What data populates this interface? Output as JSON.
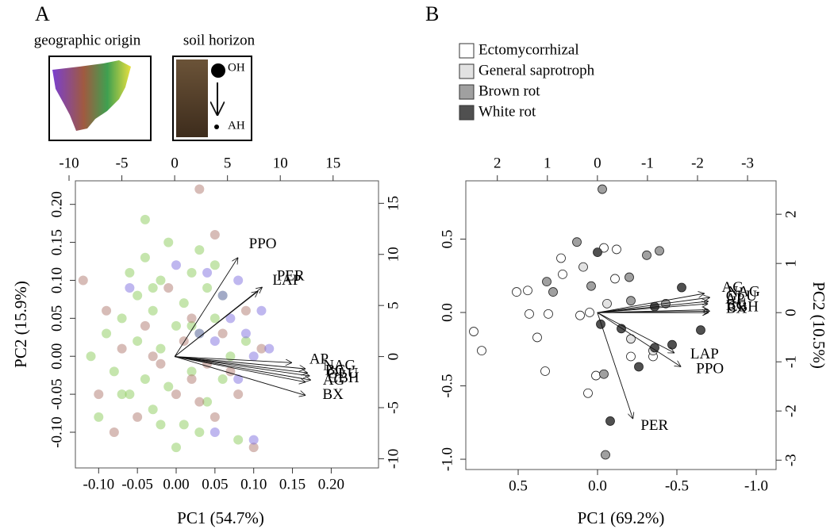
{
  "chart_data": [
    {
      "type": "biplot",
      "title": "A",
      "annotations": {
        "inset_left": "geographic origin",
        "inset_right": "soil horizon",
        "top_label": "OH",
        "bottom_label": "AH"
      },
      "xlabel": "PC1 (54.7%)",
      "ylabel": "PC2 (15.9%)",
      "xlim": [
        -0.13,
        0.261
      ],
      "ylim": [
        -0.147,
        0.231
      ],
      "xticks": [
        {
          "value": -0.1,
          "label": "-0.10"
        },
        -0.05,
        {
          "value": 0,
          "label": "0.00"
        },
        0.05,
        {
          "value": 0.1,
          "label": "0.10"
        },
        0.15,
        {
          "value": 0.2,
          "label": "0.20"
        }
      ],
      "yticks": [
        {
          "value": -0.1,
          "label": "-0.10"
        },
        -0.05,
        {
          "value": 0,
          "label": "0.00"
        },
        0.05,
        {
          "value": 0.1,
          "label": "0.10"
        },
        0.15,
        {
          "value": 0.2,
          "label": "0.20"
        }
      ],
      "x2lim": [
        -9.4,
        19.3
      ],
      "y2lim": [
        -10.9,
        17.2
      ],
      "x2ticks": [
        -10,
        -5,
        0,
        5,
        10,
        15
      ],
      "y2ticks": [
        -10,
        -5,
        0,
        5,
        10,
        15
      ],
      "series": [
        {
          "color": "#8ccc5c",
          "x": [
            -0.11,
            -0.09,
            -0.08,
            -0.07,
            -0.06,
            -0.05,
            -0.05,
            -0.04,
            -0.04,
            -0.03,
            -0.03,
            -0.02,
            -0.02,
            -0.01,
            -0.01,
            0.0,
            0.01,
            0.01,
            0.02,
            0.02,
            0.03,
            0.03,
            0.04,
            0.04,
            0.05,
            0.05,
            0.06,
            0.07,
            0.08,
            0.09,
            -0.04,
            -0.1,
            -0.06,
            0.0,
            0.03,
            -0.02,
            0.06,
            0.02,
            -0.07,
            -0.03
          ],
          "y": [
            0.0,
            0.03,
            -0.02,
            0.05,
            -0.05,
            0.02,
            0.08,
            -0.03,
            0.13,
            0.06,
            -0.07,
            0.1,
            0.01,
            0.15,
            -0.04,
            0.04,
            -0.09,
            0.07,
            0.11,
            -0.02,
            0.03,
            -0.1,
            0.09,
            -0.06,
            0.05,
            0.12,
            -0.03,
            0.0,
            -0.11,
            0.02,
            0.18,
            -0.08,
            0.11,
            -0.12,
            0.14,
            -0.09,
            0.08,
            0.04,
            -0.05,
            0.09
          ]
        },
        {
          "color": "#b07a70",
          "x": [
            -0.12,
            -0.1,
            -0.09,
            -0.07,
            -0.05,
            -0.04,
            -0.02,
            -0.01,
            0.0,
            0.01,
            0.02,
            0.03,
            0.04,
            0.05,
            0.06,
            0.07,
            0.08,
            0.1,
            0.11,
            0.03,
            -0.08,
            0.05,
            0.09,
            -0.03,
            0.02
          ],
          "y": [
            0.1,
            -0.05,
            0.06,
            0.01,
            -0.08,
            0.04,
            -0.01,
            0.09,
            -0.05,
            0.02,
            -0.03,
            0.22,
            -0.01,
            -0.08,
            0.03,
            -0.02,
            -0.05,
            -0.12,
            0.01,
            -0.06,
            -0.1,
            0.16,
            0.06,
            0.0,
            0.05
          ]
        },
        {
          "color": "#8070e0",
          "x": [
            -0.06,
            0.0,
            0.03,
            0.05,
            0.06,
            0.07,
            0.08,
            0.09,
            0.1,
            0.11,
            0.12,
            0.08,
            0.05,
            0.04,
            0.1
          ],
          "y": [
            0.09,
            0.12,
            0.03,
            -0.1,
            0.08,
            0.05,
            0.1,
            0.03,
            -0.11,
            0.06,
            0.01,
            -0.03,
            0.02,
            0.11,
            0.0
          ]
        }
      ],
      "loadings": [
        {
          "label": "PPO",
          "x": 6.0,
          "y": 9.7
        },
        {
          "label": "PER",
          "x": 8.3,
          "y": 6.8
        },
        {
          "label": "LAP",
          "x": 7.9,
          "y": 6.4
        },
        {
          "label": "AP",
          "x": 11.1,
          "y": -0.6
        },
        {
          "label": "NAG",
          "x": 12.4,
          "y": -1.2
        },
        {
          "label": "BG",
          "x": 12.6,
          "y": -1.6
        },
        {
          "label": "GLU",
          "x": 12.8,
          "y": -1.9
        },
        {
          "label": "CBH",
          "x": 12.9,
          "y": -2.3
        },
        {
          "label": "AG",
          "x": 12.4,
          "y": -2.5
        },
        {
          "label": "BX",
          "x": 12.4,
          "y": -3.8
        }
      ]
    },
    {
      "type": "biplot",
      "title": "B",
      "xlabel": "PC1 (69.2%)",
      "ylabel": "PC2 (10.5%)",
      "xlim": [
        0.83,
        -1.125
      ],
      "ylim": [
        -1.07,
        0.897
      ],
      "xticks": [
        0.5,
        {
          "value": 0,
          "label": "0.0"
        },
        -0.5,
        {
          "value": -1,
          "label": "-1.0"
        }
      ],
      "yticks": [
        {
          "value": -1,
          "label": "-1.0"
        },
        -0.5,
        {
          "value": 0,
          "label": "0.0"
        },
        0.5
      ],
      "x2lim": [
        2.63,
        -3.57
      ],
      "y2lim": [
        -3.19,
        2.68
      ],
      "x2ticks": [
        2,
        1,
        0,
        -1,
        -2,
        -3
      ],
      "y2ticks": [
        -3,
        -2,
        -1,
        0,
        1,
        2
      ],
      "series": [
        {
          "name": "Ectomycorrhizal",
          "color": "#ffffff",
          "x": [
            0.78,
            0.73,
            0.43,
            0.38,
            0.33,
            0.31,
            0.44,
            0.51,
            0.23,
            0.06,
            0.01,
            -0.11,
            -0.12,
            -0.21,
            -0.35,
            0.05,
            0.11,
            0.22,
            -0.04
          ],
          "y": [
            -0.13,
            -0.26,
            -0.01,
            -0.17,
            -0.4,
            -0.01,
            0.15,
            0.14,
            0.37,
            -0.55,
            -0.43,
            0.23,
            0.43,
            -0.3,
            -0.3,
            0.0,
            -0.02,
            0.26,
            0.44
          ]
        },
        {
          "name": "General saprotroph",
          "color": "#e2e2e2",
          "x": [
            -0.21,
            -0.35,
            -0.06,
            0.09
          ],
          "y": [
            -0.18,
            -0.26,
            0.06,
            0.31
          ]
        },
        {
          "name": "Brown rot",
          "color": "#a0a0a0",
          "x": [
            -0.05,
            -0.04,
            0.28,
            0.32,
            0.04,
            -0.2,
            0.13,
            -0.43,
            -0.03,
            -0.39,
            -0.31,
            -0.21
          ],
          "y": [
            -0.97,
            -0.42,
            0.14,
            0.21,
            0.18,
            0.24,
            0.48,
            0.06,
            0.84,
            0.42,
            0.39,
            0.08
          ]
        },
        {
          "name": "White rot",
          "color": "#505050",
          "x": [
            -0.08,
            -0.26,
            -0.02,
            -0.15,
            -0.36,
            -0.47,
            -0.65,
            -0.36,
            -0.53,
            0.0
          ],
          "y": [
            -0.74,
            -0.37,
            -0.08,
            -0.11,
            -0.24,
            -0.22,
            -0.12,
            0.04,
            0.17,
            0.41
          ]
        }
      ],
      "loadings": [
        {
          "label": "PER",
          "x": -0.71,
          "y": -2.16
        },
        {
          "label": "PPO",
          "x": -1.67,
          "y": -1.1
        },
        {
          "label": "LAP",
          "x": -1.54,
          "y": -0.82
        },
        {
          "label": "BX",
          "x": -2.22,
          "y": 0.0
        },
        {
          "label": "CBH",
          "x": -2.25,
          "y": 0.03
        },
        {
          "label": "BG",
          "x": -2.22,
          "y": 0.06
        },
        {
          "label": "AP",
          "x": -2.21,
          "y": 0.18
        },
        {
          "label": "GLU",
          "x": -2.22,
          "y": 0.23
        },
        {
          "label": "NAG",
          "x": -2.25,
          "y": 0.31
        },
        {
          "label": "AG",
          "x": -2.14,
          "y": 0.39
        }
      ]
    }
  ]
}
